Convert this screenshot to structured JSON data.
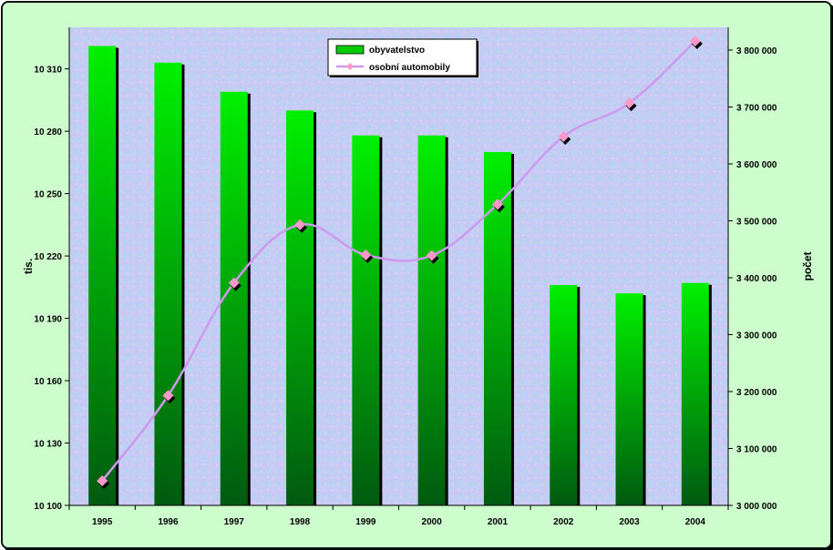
{
  "chart_data": {
    "type": "bar",
    "categories": [
      "1995",
      "1996",
      "1997",
      "1998",
      "1999",
      "2000",
      "2001",
      "2002",
      "2003",
      "2004"
    ],
    "series": [
      {
        "name": "obyvatelstvo",
        "type": "bar",
        "axis": "left",
        "values": [
          10321,
          10313,
          10299,
          10290,
          10278,
          10278,
          10270,
          10206,
          10202,
          10207
        ],
        "color": "#00dd00"
      },
      {
        "name": "osobní automobily",
        "type": "line",
        "axis": "right",
        "values": [
          3043000,
          3193000,
          3391000,
          3493000,
          3440000,
          3439000,
          3529000,
          3648000,
          3707000,
          3816000
        ],
        "color": "#cc99ee",
        "marker_color": "#ff99cc"
      }
    ],
    "ylabel": "tis.",
    "ylabel_right": "počet",
    "ylim": [
      10100,
      10330
    ],
    "yticks": [
      10100,
      10130,
      10160,
      10190,
      10220,
      10250,
      10280,
      10310
    ],
    "ytick_labels": [
      "10 100",
      "10 130",
      "10 160",
      "10 190",
      "10 220",
      "10 250",
      "10 280",
      "10 310"
    ],
    "ylim_right": [
      3000000,
      3840000
    ],
    "yticks_right": [
      3000000,
      3100000,
      3200000,
      3300000,
      3400000,
      3500000,
      3600000,
      3700000,
      3800000
    ],
    "ytick_labels_right": [
      "3 000 000",
      "3 100 000",
      "3 200 000",
      "3 300 000",
      "3 400 000",
      "3 500 000",
      "3 600 000",
      "3 700 000",
      "3 800 000"
    ],
    "legend": {
      "position": "top-center",
      "entries": [
        "obyvatelstvo",
        "osobní automobily"
      ]
    },
    "grid": false
  }
}
